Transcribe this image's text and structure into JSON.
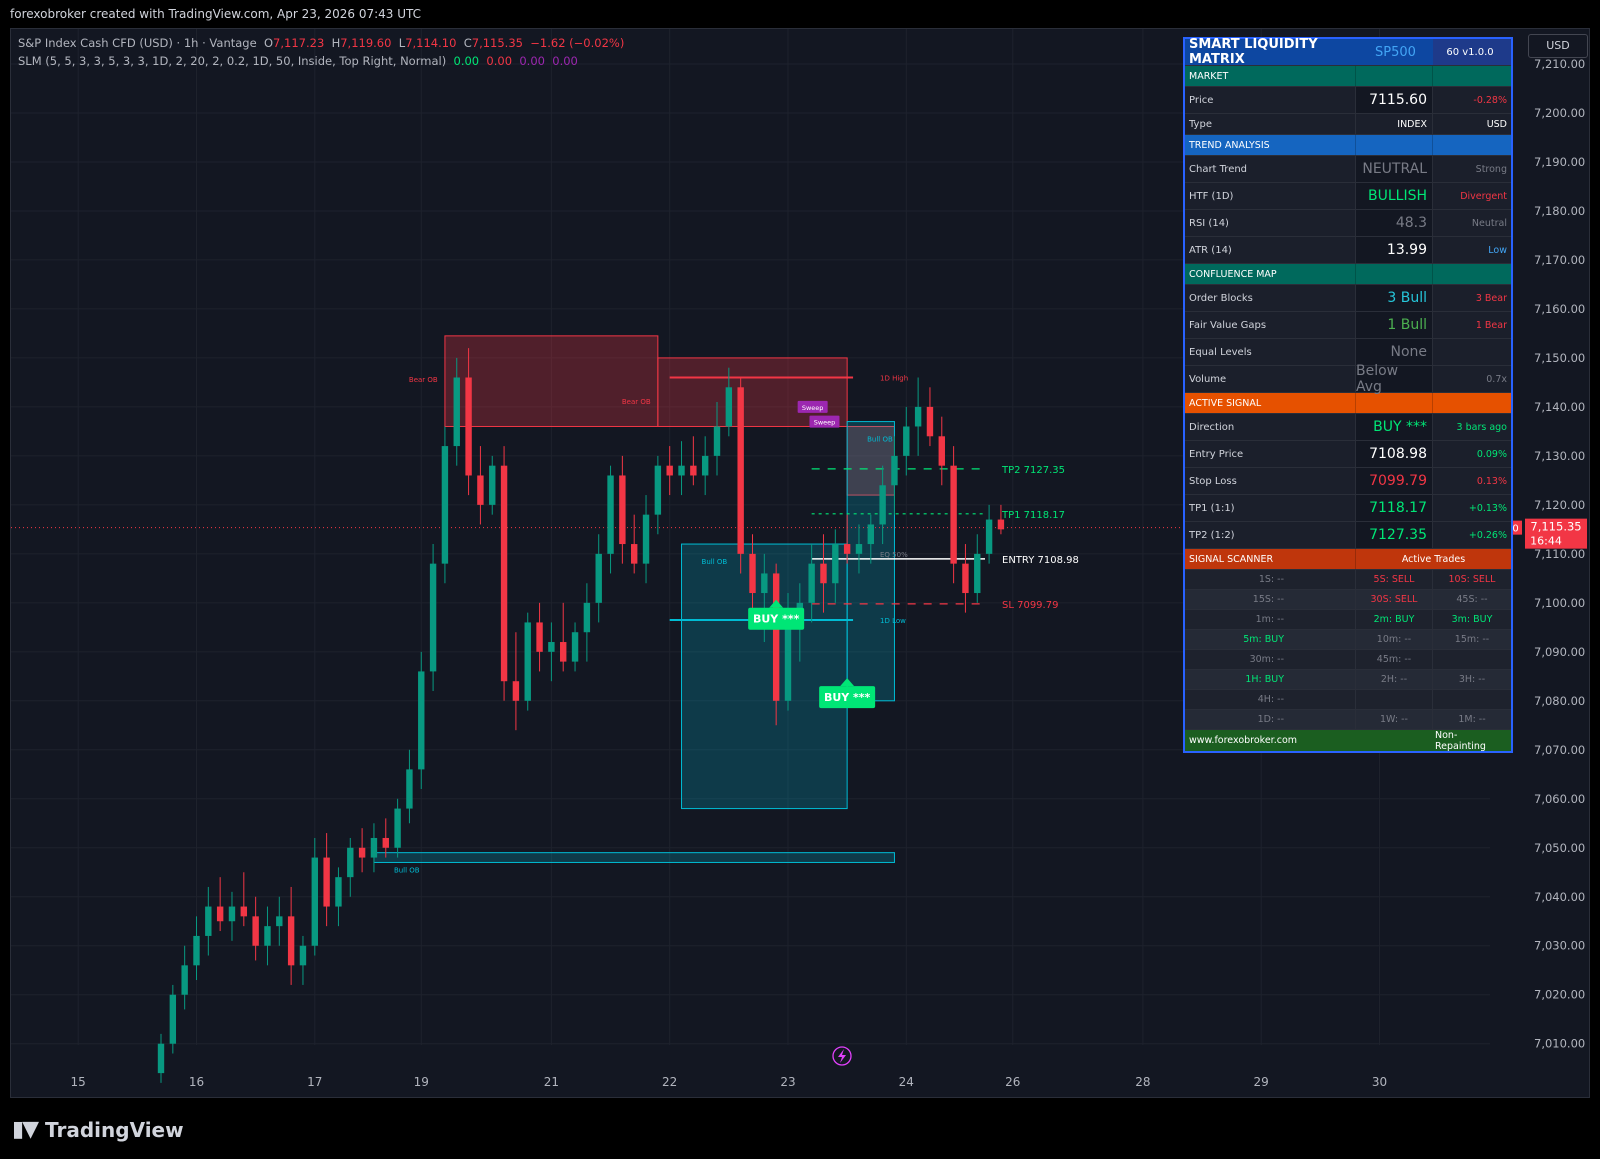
{
  "caption": "forexobroker created with TradingView.com, Apr 23, 2026 07:43 UTC",
  "legend": {
    "symbol": "S&P Index Cash CFD (USD) · 1h · Vantage",
    "o_label": "O",
    "o": "7,117.23",
    "h_label": "H",
    "h": "7,119.60",
    "l_label": "L",
    "l": "7,114.10",
    "c_label": "C",
    "c": "7,115.35",
    "change": "−1.62 (−0.02%)",
    "indicator": "SLM (5, 5, 3, 3, 5, 3, 3, 1D, 2, 20, 2, 0.2, 1D, 50, Inside, Top Right, Normal)",
    "ind_values": [
      "0.00",
      "0.00",
      "0.00",
      "0.00"
    ]
  },
  "currency": "USD",
  "brand": "TradingView",
  "colors": {
    "bull": "#089981",
    "bear": "#f23645",
    "bg": "#131722",
    "accent": "#2962ff"
  },
  "chart_data": {
    "type": "candlestick",
    "symbol": "SP500",
    "timeframe": "1h",
    "last_price": 7115.35,
    "last_price_label": "7,115.35",
    "countdown": "16:44",
    "ylim": [
      7003,
      7220
    ],
    "yticks": [
      7010,
      7020,
      7030,
      7040,
      7050,
      7060,
      7070,
      7080,
      7090,
      7100,
      7110,
      7120,
      7130,
      7140,
      7150,
      7160,
      7170,
      7180,
      7190,
      7200,
      7210
    ],
    "ytick_labels": [
      "7,010.00",
      "7,020.00",
      "7,030.00",
      "7,040.00",
      "7,050.00",
      "7,060.00",
      "7,070.00",
      "7,080.00",
      "7,090.00",
      "7,100.00",
      "7,110.00",
      "7,120.00",
      "7,130.00",
      "7,140.00",
      "7,150.00",
      "7,160.00",
      "7,170.00",
      "7,180.00",
      "7,190.00",
      "7,200.00",
      "7,210.00"
    ],
    "xticks": [
      {
        "label": "15",
        "bar": -7
      },
      {
        "label": "16",
        "bar": 3
      },
      {
        "label": "17",
        "bar": 13
      },
      {
        "label": "19",
        "bar": 22
      },
      {
        "label": "21",
        "bar": 33
      },
      {
        "label": "22",
        "bar": 43
      },
      {
        "label": "23",
        "bar": 53
      },
      {
        "label": "24",
        "bar": 63
      },
      {
        "label": "26",
        "bar": 72
      },
      {
        "label": "28",
        "bar": 83
      },
      {
        "label": "29",
        "bar": 93
      },
      {
        "label": "30",
        "bar": 103
      }
    ],
    "ohlc": [
      [
        7004,
        7012,
        7002,
        7010
      ],
      [
        7010,
        7022,
        7008,
        7020
      ],
      [
        7020,
        7030,
        7017,
        7026
      ],
      [
        7026,
        7036,
        7023,
        7032
      ],
      [
        7032,
        7042,
        7028,
        7038
      ],
      [
        7038,
        7044,
        7033,
        7035
      ],
      [
        7035,
        7041,
        7031,
        7038
      ],
      [
        7038,
        7045,
        7034,
        7036
      ],
      [
        7036,
        7040,
        7027,
        7030
      ],
      [
        7030,
        7038,
        7026,
        7034
      ],
      [
        7034,
        7040,
        7030,
        7036
      ],
      [
        7036,
        7042,
        7022,
        7026
      ],
      [
        7026,
        7032,
        7022,
        7030
      ],
      [
        7030,
        7052,
        7028,
        7048
      ],
      [
        7048,
        7053,
        7034,
        7038
      ],
      [
        7038,
        7046,
        7034,
        7044
      ],
      [
        7044,
        7052,
        7040,
        7050
      ],
      [
        7050,
        7054,
        7045,
        7048
      ],
      [
        7048,
        7055,
        7045,
        7052
      ],
      [
        7052,
        7056,
        7048,
        7050
      ],
      [
        7050,
        7060,
        7048,
        7058
      ],
      [
        7058,
        7070,
        7055,
        7066
      ],
      [
        7066,
        7090,
        7062,
        7086
      ],
      [
        7086,
        7112,
        7082,
        7108
      ],
      [
        7108,
        7136,
        7104,
        7132
      ],
      [
        7132,
        7150,
        7128,
        7146
      ],
      [
        7146,
        7152,
        7122,
        7126
      ],
      [
        7126,
        7132,
        7116,
        7120
      ],
      [
        7120,
        7130,
        7118,
        7128
      ],
      [
        7128,
        7132,
        7080,
        7084
      ],
      [
        7084,
        7094,
        7074,
        7080
      ],
      [
        7080,
        7098,
        7078,
        7096
      ],
      [
        7096,
        7100,
        7086,
        7090
      ],
      [
        7090,
        7096,
        7084,
        7092
      ],
      [
        7092,
        7100,
        7086,
        7088
      ],
      [
        7088,
        7096,
        7086,
        7094
      ],
      [
        7094,
        7104,
        7088,
        7100
      ],
      [
        7100,
        7114,
        7096,
        7110
      ],
      [
        7110,
        7128,
        7106,
        7126
      ],
      [
        7126,
        7130,
        7108,
        7112
      ],
      [
        7112,
        7118,
        7106,
        7108
      ],
      [
        7108,
        7122,
        7104,
        7118
      ],
      [
        7118,
        7130,
        7114,
        7128
      ],
      [
        7128,
        7132,
        7122,
        7126
      ],
      [
        7126,
        7133,
        7122,
        7128
      ],
      [
        7128,
        7134,
        7124,
        7126
      ],
      [
        7126,
        7134,
        7122,
        7130
      ],
      [
        7130,
        7141,
        7126,
        7136
      ],
      [
        7136,
        7148,
        7134,
        7144
      ],
      [
        7144,
        7146,
        7106,
        7110
      ],
      [
        7110,
        7114,
        7097,
        7102
      ],
      [
        7102,
        7110,
        7092,
        7106
      ],
      [
        7106,
        7108,
        7075,
        7080
      ],
      [
        7080,
        7102,
        7078,
        7096
      ],
      [
        7096,
        7104,
        7088,
        7100
      ],
      [
        7100,
        7112,
        7096,
        7108
      ],
      [
        7108,
        7114,
        7098,
        7104
      ],
      [
        7104,
        7115,
        7100,
        7112
      ],
      [
        7112,
        7118,
        7108,
        7110
      ],
      [
        7110,
        7116,
        7106,
        7112
      ],
      [
        7112,
        7118,
        7108,
        7116
      ],
      [
        7116,
        7128,
        7112,
        7124
      ],
      [
        7124,
        7134,
        7118,
        7130
      ],
      [
        7130,
        7140,
        7126,
        7136
      ],
      [
        7136,
        7146,
        7130,
        7140
      ],
      [
        7140,
        7144,
        7132,
        7134
      ],
      [
        7134,
        7138,
        7124,
        7128
      ],
      [
        7128,
        7132,
        7104,
        7108
      ],
      [
        7108,
        7112,
        7098,
        7102
      ],
      [
        7102,
        7114,
        7100,
        7110
      ],
      [
        7110,
        7120,
        7108,
        7117
      ],
      [
        7117,
        7120,
        7114,
        7115
      ]
    ],
    "zones": [
      {
        "type": "bear",
        "label": "Bear OB",
        "from": 24,
        "to": 42,
        "top": 7154.5,
        "bottom": 7136
      },
      {
        "type": "bear",
        "label": "Bear OB",
        "from": 42,
        "to": 58,
        "top": 7150,
        "bottom": 7136
      },
      {
        "type": "bear",
        "label": "",
        "from": 58,
        "to": 62,
        "top": 7136,
        "bottom": 7122
      },
      {
        "type": "bull",
        "label": "Bull OB",
        "from": 44,
        "to": 58,
        "top": 7112,
        "bottom": 7058
      },
      {
        "type": "bull",
        "label": "Bull OB",
        "from": 58,
        "to": 62,
        "top": 7137,
        "bottom": 7080
      },
      {
        "type": "bull",
        "label": "Bull OB",
        "from": 18,
        "to": 62,
        "top": 7049,
        "bottom": 7047
      }
    ],
    "level_lines": [
      {
        "label": "1D High",
        "value": 7146,
        "color": "#f23645"
      },
      {
        "label": "1D Low",
        "value": 7096.5,
        "color": "#00bcd4"
      },
      {
        "label": "EQ 50%",
        "value": 7110,
        "color": "#787b86"
      }
    ],
    "trade_lines": [
      {
        "label": "TP2 7127.35",
        "value": 7127.35,
        "color": "#00e676",
        "style": "dash"
      },
      {
        "label": "TP1 7118.17",
        "value": 7118.17,
        "color": "#00e676",
        "style": "dot"
      },
      {
        "label": "ENTRY 7108.98",
        "value": 7108.98,
        "color": "#ffffff",
        "style": "solid"
      },
      {
        "label": "SL 7099.79",
        "value": 7099.79,
        "color": "#f23645",
        "style": "dash"
      }
    ],
    "signals": [
      {
        "label": "BUY ***",
        "bar": 52,
        "price": 7099
      },
      {
        "label": "BUY ***",
        "bar": 58,
        "price": 7083
      }
    ],
    "sweeps": [
      {
        "label": "Sweep",
        "bar": 55,
        "price": 7140
      },
      {
        "label": "Sweep",
        "bar": 56,
        "price": 7137
      }
    ]
  },
  "dashboard": {
    "title": "SMART LIQUIDITY MATRIX",
    "symbol": "SP500",
    "version": "60  v1.0.0",
    "market": {
      "header": "MARKET",
      "price_label": "Price",
      "price": "7115.60",
      "price_chg": "-0.28%",
      "type_label": "Type",
      "type": "INDEX",
      "type_ccy": "USD"
    },
    "trend": {
      "header": "TREND ANALYSIS",
      "rows": [
        {
          "label": "Chart Trend",
          "value": "NEUTRAL",
          "note": "Strong",
          "vcolor": "#787b86",
          "ncolor": "#787b86"
        },
        {
          "label": "HTF (1D)",
          "value": "BULLISH",
          "note": "Divergent",
          "vcolor": "#00e676",
          "ncolor": "#f23645"
        },
        {
          "label": "RSI (14)",
          "value": "48.3",
          "note": "Neutral",
          "vcolor": "#787b86",
          "ncolor": "#787b86"
        },
        {
          "label": "ATR (14)",
          "value": "13.99",
          "note": "Low",
          "vcolor": "#ffffff",
          "ncolor": "#42a5f5"
        }
      ]
    },
    "confluence": {
      "header": "CONFLUENCE MAP",
      "rows": [
        {
          "label": "Order Blocks",
          "value": "3 Bull",
          "note": "3 Bear",
          "vcolor": "#26c6da",
          "ncolor": "#f23645"
        },
        {
          "label": "Fair Value Gaps",
          "value": "1 Bull",
          "note": "1 Bear",
          "vcolor": "#4caf50",
          "ncolor": "#f23645"
        },
        {
          "label": "Equal Levels",
          "value": "None",
          "note": "",
          "vcolor": "#787b86",
          "ncolor": "#787b86"
        },
        {
          "label": "Volume",
          "value": "Below Avg",
          "note": "0.7x",
          "vcolor": "#787b86",
          "ncolor": "#787b86"
        }
      ]
    },
    "signal": {
      "header": "ACTIVE SIGNAL",
      "rows": [
        {
          "label": "Direction",
          "value": "BUY ***",
          "note": "3 bars ago",
          "vcolor": "#00e676",
          "ncolor": "#00e676"
        },
        {
          "label": "Entry Price",
          "value": "7108.98",
          "note": "0.09%",
          "vcolor": "#ffffff",
          "ncolor": "#00e676"
        },
        {
          "label": "Stop Loss",
          "value": "7099.79",
          "note": "0.13%",
          "vcolor": "#f23645",
          "ncolor": "#f23645"
        },
        {
          "label": "TP1 (1:1)",
          "value": "7118.17",
          "note": "+0.13%",
          "vcolor": "#00e676",
          "ncolor": "#00e676"
        },
        {
          "label": "TP2 (1:2)",
          "value": "7127.35",
          "note": "+0.26%",
          "vcolor": "#00e676",
          "ncolor": "#00e676"
        }
      ]
    },
    "scanner": {
      "header": "SIGNAL SCANNER",
      "header2": "Active Trades",
      "rows": [
        [
          {
            "t": "1S: --",
            "c": "#787b86"
          },
          {
            "t": "5S: SELL",
            "c": "#f23645"
          },
          {
            "t": "10S: SELL",
            "c": "#f23645"
          }
        ],
        [
          {
            "t": "15S: --",
            "c": "#787b86"
          },
          {
            "t": "30S: SELL",
            "c": "#f23645"
          },
          {
            "t": "45S: --",
            "c": "#787b86"
          }
        ],
        [
          {
            "t": "1m: --",
            "c": "#787b86"
          },
          {
            "t": "2m: BUY",
            "c": "#00e676"
          },
          {
            "t": "3m: BUY",
            "c": "#00e676"
          }
        ],
        [
          {
            "t": "5m: BUY",
            "c": "#00e676"
          },
          {
            "t": "10m: --",
            "c": "#787b86"
          },
          {
            "t": "15m: --",
            "c": "#787b86"
          }
        ],
        [
          {
            "t": "30m: --",
            "c": "#787b86"
          },
          {
            "t": "45m: --",
            "c": "#787b86"
          },
          {
            "t": "",
            "c": "#787b86"
          }
        ],
        [
          {
            "t": "1H: BUY",
            "c": "#00e676"
          },
          {
            "t": "2H: --",
            "c": "#787b86"
          },
          {
            "t": "3H: --",
            "c": "#787b86"
          }
        ],
        [
          {
            "t": "4H: --",
            "c": "#787b86"
          },
          {
            "t": "",
            "c": "#787b86"
          },
          {
            "t": "",
            "c": "#787b86"
          }
        ],
        [
          {
            "t": "1D: --",
            "c": "#787b86"
          },
          {
            "t": "1W: --",
            "c": "#787b86"
          },
          {
            "t": "1M: --",
            "c": "#787b86"
          }
        ]
      ]
    },
    "footer_left": "www.forexobroker.com",
    "footer_right": "Non-Repainting"
  }
}
